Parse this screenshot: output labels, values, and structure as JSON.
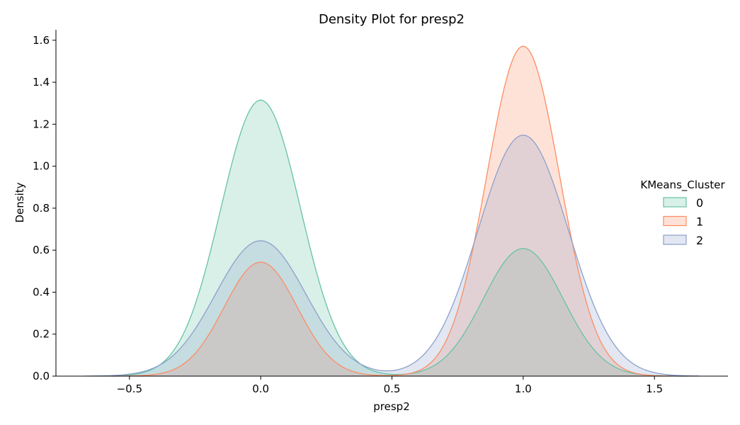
{
  "chart_data": {
    "type": "area",
    "title": "Density Plot for presp2",
    "xlabel": "presp2",
    "ylabel": "Density",
    "xlim": [
      -0.78,
      1.78
    ],
    "ylim": [
      0,
      1.65
    ],
    "xticks": [
      -0.5,
      0.0,
      0.5,
      1.0,
      1.5
    ],
    "xtick_labels": [
      "−0.5",
      "0.0",
      "0.5",
      "1.0",
      "1.5"
    ],
    "yticks": [
      0.0,
      0.2,
      0.4,
      0.6,
      0.8,
      1.0,
      1.2,
      1.4,
      1.6
    ],
    "ytick_labels": [
      "0.0",
      "0.2",
      "0.4",
      "0.6",
      "0.8",
      "1.0",
      "1.2",
      "1.4",
      "1.6"
    ],
    "grid": false,
    "legend": {
      "title": "KMeans_Cluster",
      "position": "center-right"
    },
    "series": [
      {
        "name": "0",
        "color": "#66c2a5",
        "x_range": [
          -0.63,
          1.63
        ],
        "components": [
          {
            "center": 0.0,
            "sigma": 0.152,
            "peak": 1.315
          },
          {
            "center": 1.0,
            "sigma": 0.152,
            "peak": 0.608
          }
        ]
      },
      {
        "name": "1",
        "color": "#fc8d62",
        "x_range": [
          -0.57,
          1.57
        ],
        "components": [
          {
            "center": 0.0,
            "sigma": 0.139,
            "peak": 0.543
          },
          {
            "center": 1.0,
            "sigma": 0.139,
            "peak": 1.572
          }
        ]
      },
      {
        "name": "2",
        "color": "#8da0cb",
        "x_range": [
          -0.67,
          1.67
        ],
        "components": [
          {
            "center": 0.0,
            "sigma": 0.172,
            "peak": 0.645
          },
          {
            "center": 1.0,
            "sigma": 0.172,
            "peak": 1.148
          }
        ]
      }
    ]
  }
}
